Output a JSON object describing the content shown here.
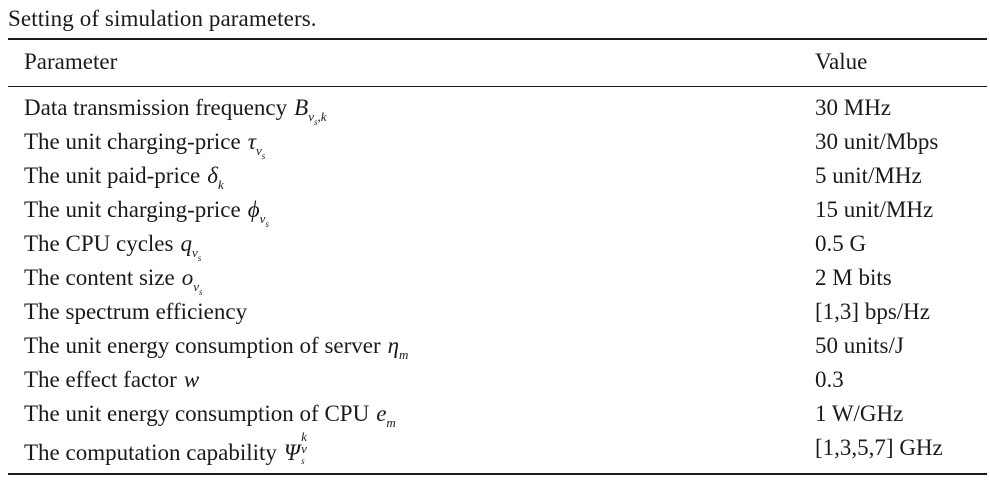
{
  "caption": "Setting of simulation parameters.",
  "table": {
    "headers": {
      "parameter": "Parameter",
      "value": "Value"
    },
    "rows": [
      {
        "label": "Data transmission frequency",
        "symbol": "B",
        "value": "30 MHz"
      },
      {
        "label": "The unit charging-price",
        "symbol": "τ",
        "value": "30 unit/Mbps"
      },
      {
        "label": "The unit paid-price",
        "symbol": "δ",
        "value": "5 unit/MHz"
      },
      {
        "label": "The unit charging-price",
        "symbol": "ϕ",
        "value": "15 unit/MHz"
      },
      {
        "label": "The CPU cycles",
        "symbol": "q",
        "value": "0.5 G"
      },
      {
        "label": "The content size",
        "symbol": "o",
        "value": "2 M bits"
      },
      {
        "label": "The spectrum efficiency",
        "symbol": "",
        "value": "[1,3] bps/Hz"
      },
      {
        "label": "The unit energy consumption of server",
        "symbol": "η",
        "value": "50 units/J"
      },
      {
        "label": "The effect factor",
        "symbol": "w",
        "value": "0.3"
      },
      {
        "label": "The unit energy consumption of CPU",
        "symbol": "e",
        "value": "1 W/GHz"
      },
      {
        "label": "The computation capability",
        "symbol": "Ψ",
        "value": "[1,3,5,7] GHz"
      }
    ]
  }
}
